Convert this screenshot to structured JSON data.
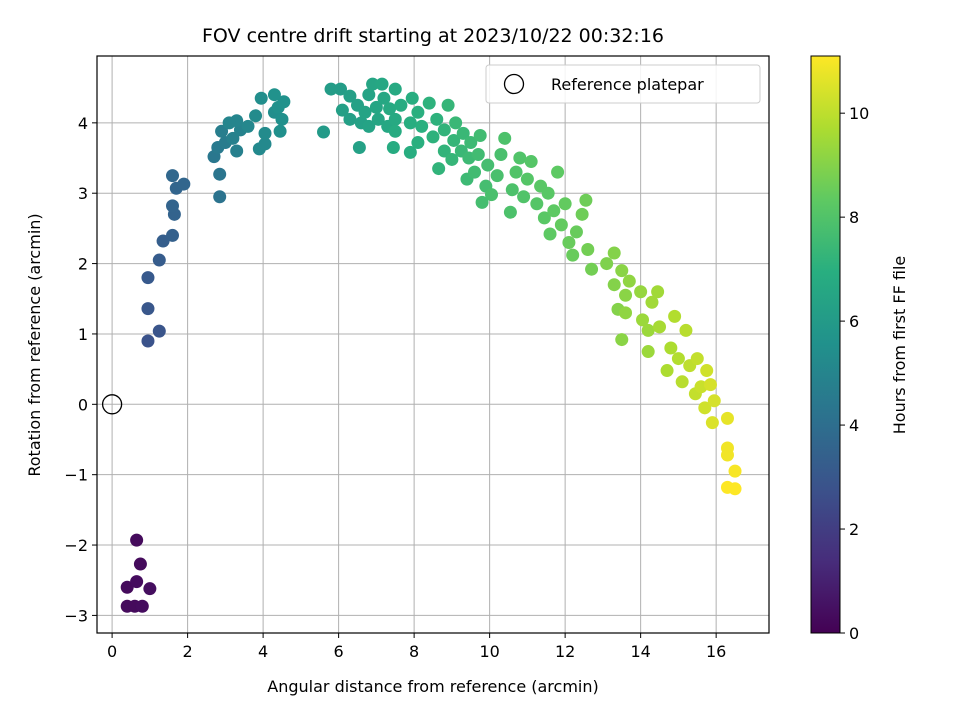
{
  "chart_data": {
    "type": "scatter",
    "title": "FOV centre drift starting at 2023/10/22 00:32:16",
    "xlabel": "Angular distance from reference (arcmin)",
    "ylabel": "Rotation from reference (arcmin)",
    "xlim": [
      -0.4,
      17.4
    ],
    "ylim": [
      -3.25,
      4.95
    ],
    "xticks": [
      0,
      2,
      4,
      6,
      8,
      10,
      12,
      14,
      16
    ],
    "yticks": [
      -3,
      -2,
      -1,
      0,
      1,
      2,
      3,
      4
    ],
    "grid": true,
    "legend": {
      "position": "top-right",
      "entries": [
        "Reference platepar"
      ]
    },
    "reference_point": {
      "label": "Reference platepar",
      "x": 0,
      "y": 0
    },
    "colorbar": {
      "label": "Hours from first FF file",
      "colormap": "viridis",
      "range": [
        0,
        11.1
      ],
      "ticks": [
        0,
        2,
        4,
        6,
        8,
        10
      ]
    },
    "points": [
      {
        "x": 0.65,
        "y": -1.93,
        "c": 0.3
      },
      {
        "x": 0.75,
        "y": -2.27,
        "c": 0.3
      },
      {
        "x": 0.4,
        "y": -2.6,
        "c": 0.3
      },
      {
        "x": 0.65,
        "y": -2.52,
        "c": 0.35
      },
      {
        "x": 1.0,
        "y": -2.62,
        "c": 0.4
      },
      {
        "x": 0.4,
        "y": -2.87,
        "c": 0.3
      },
      {
        "x": 0.6,
        "y": -2.87,
        "c": 0.3
      },
      {
        "x": 0.8,
        "y": -2.87,
        "c": 0.35
      },
      {
        "x": 0.95,
        "y": 0.9,
        "c": 2.8
      },
      {
        "x": 1.25,
        "y": 1.04,
        "c": 2.9
      },
      {
        "x": 0.95,
        "y": 1.36,
        "c": 3.0
      },
      {
        "x": 0.95,
        "y": 1.8,
        "c": 3.1
      },
      {
        "x": 1.25,
        "y": 2.05,
        "c": 3.2
      },
      {
        "x": 1.35,
        "y": 2.32,
        "c": 3.3
      },
      {
        "x": 1.6,
        "y": 2.4,
        "c": 3.4
      },
      {
        "x": 1.65,
        "y": 2.7,
        "c": 3.5
      },
      {
        "x": 1.6,
        "y": 2.82,
        "c": 3.55
      },
      {
        "x": 1.7,
        "y": 3.07,
        "c": 3.6
      },
      {
        "x": 1.9,
        "y": 3.13,
        "c": 3.65
      },
      {
        "x": 1.6,
        "y": 3.25,
        "c": 3.7
      },
      {
        "x": 2.85,
        "y": 2.95,
        "c": 4.2
      },
      {
        "x": 2.85,
        "y": 3.27,
        "c": 4.3
      },
      {
        "x": 2.7,
        "y": 3.52,
        "c": 4.4
      },
      {
        "x": 2.8,
        "y": 3.65,
        "c": 4.5
      },
      {
        "x": 3.0,
        "y": 3.72,
        "c": 4.6
      },
      {
        "x": 2.9,
        "y": 3.88,
        "c": 4.7
      },
      {
        "x": 3.3,
        "y": 3.6,
        "c": 4.8
      },
      {
        "x": 3.2,
        "y": 3.78,
        "c": 4.85
      },
      {
        "x": 3.4,
        "y": 3.9,
        "c": 4.9
      },
      {
        "x": 3.3,
        "y": 4.03,
        "c": 5.0
      },
      {
        "x": 3.1,
        "y": 4.0,
        "c": 5.0
      },
      {
        "x": 3.6,
        "y": 3.95,
        "c": 5.1
      },
      {
        "x": 3.9,
        "y": 3.63,
        "c": 5.2
      },
      {
        "x": 4.05,
        "y": 3.7,
        "c": 5.2
      },
      {
        "x": 4.05,
        "y": 3.85,
        "c": 5.3
      },
      {
        "x": 3.8,
        "y": 4.1,
        "c": 5.3
      },
      {
        "x": 3.95,
        "y": 4.35,
        "c": 5.4
      },
      {
        "x": 4.3,
        "y": 4.15,
        "c": 5.4
      },
      {
        "x": 4.45,
        "y": 3.88,
        "c": 5.5
      },
      {
        "x": 4.5,
        "y": 4.05,
        "c": 5.5
      },
      {
        "x": 4.4,
        "y": 4.22,
        "c": 5.55
      },
      {
        "x": 4.55,
        "y": 4.3,
        "c": 5.6
      },
      {
        "x": 4.3,
        "y": 4.4,
        "c": 5.6
      },
      {
        "x": 5.6,
        "y": 3.87,
        "c": 6.0
      },
      {
        "x": 5.8,
        "y": 4.48,
        "c": 6.1
      },
      {
        "x": 6.05,
        "y": 4.48,
        "c": 6.1
      },
      {
        "x": 6.1,
        "y": 4.18,
        "c": 6.2
      },
      {
        "x": 6.3,
        "y": 4.05,
        "c": 6.2
      },
      {
        "x": 6.3,
        "y": 4.38,
        "c": 6.2
      },
      {
        "x": 6.55,
        "y": 3.65,
        "c": 6.3
      },
      {
        "x": 6.6,
        "y": 4.0,
        "c": 6.3
      },
      {
        "x": 6.5,
        "y": 4.25,
        "c": 6.3
      },
      {
        "x": 6.7,
        "y": 4.15,
        "c": 6.4
      },
      {
        "x": 6.8,
        "y": 3.95,
        "c": 6.4
      },
      {
        "x": 6.8,
        "y": 4.4,
        "c": 6.4
      },
      {
        "x": 6.9,
        "y": 4.55,
        "c": 6.5
      },
      {
        "x": 7.0,
        "y": 4.22,
        "c": 6.5
      },
      {
        "x": 7.05,
        "y": 4.05,
        "c": 6.5
      },
      {
        "x": 7.2,
        "y": 4.35,
        "c": 6.6
      },
      {
        "x": 7.15,
        "y": 4.55,
        "c": 6.6
      },
      {
        "x": 7.3,
        "y": 3.95,
        "c": 6.6
      },
      {
        "x": 7.35,
        "y": 4.2,
        "c": 6.7
      },
      {
        "x": 7.5,
        "y": 4.05,
        "c": 6.7
      },
      {
        "x": 7.5,
        "y": 4.48,
        "c": 6.7
      },
      {
        "x": 7.45,
        "y": 3.65,
        "c": 6.8
      },
      {
        "x": 7.5,
        "y": 3.88,
        "c": 6.8
      },
      {
        "x": 7.65,
        "y": 4.25,
        "c": 6.8
      },
      {
        "x": 7.9,
        "y": 3.58,
        "c": 6.9
      },
      {
        "x": 7.9,
        "y": 4.0,
        "c": 6.9
      },
      {
        "x": 7.95,
        "y": 4.35,
        "c": 6.9
      },
      {
        "x": 8.1,
        "y": 3.72,
        "c": 7.0
      },
      {
        "x": 8.1,
        "y": 4.15,
        "c": 7.0
      },
      {
        "x": 8.2,
        "y": 3.95,
        "c": 7.0
      },
      {
        "x": 8.4,
        "y": 4.28,
        "c": 7.1
      },
      {
        "x": 8.5,
        "y": 3.8,
        "c": 7.1
      },
      {
        "x": 8.6,
        "y": 4.05,
        "c": 7.1
      },
      {
        "x": 8.65,
        "y": 3.35,
        "c": 7.2
      },
      {
        "x": 8.8,
        "y": 3.6,
        "c": 7.2
      },
      {
        "x": 8.8,
        "y": 3.9,
        "c": 7.2
      },
      {
        "x": 8.9,
        "y": 4.25,
        "c": 7.3
      },
      {
        "x": 9.0,
        "y": 3.48,
        "c": 7.3
      },
      {
        "x": 9.05,
        "y": 3.75,
        "c": 7.3
      },
      {
        "x": 9.1,
        "y": 4.0,
        "c": 7.4
      },
      {
        "x": 9.25,
        "y": 3.6,
        "c": 7.4
      },
      {
        "x": 9.3,
        "y": 3.85,
        "c": 7.4
      },
      {
        "x": 9.4,
        "y": 3.2,
        "c": 7.5
      },
      {
        "x": 9.45,
        "y": 3.5,
        "c": 7.5
      },
      {
        "x": 9.5,
        "y": 3.72,
        "c": 7.5
      },
      {
        "x": 9.6,
        "y": 3.3,
        "c": 7.6
      },
      {
        "x": 9.7,
        "y": 3.55,
        "c": 7.6
      },
      {
        "x": 9.75,
        "y": 3.82,
        "c": 7.6
      },
      {
        "x": 9.8,
        "y": 2.87,
        "c": 7.7
      },
      {
        "x": 9.9,
        "y": 3.1,
        "c": 7.7
      },
      {
        "x": 9.95,
        "y": 3.4,
        "c": 7.7
      },
      {
        "x": 10.05,
        "y": 2.98,
        "c": 7.8
      },
      {
        "x": 10.2,
        "y": 3.25,
        "c": 7.8
      },
      {
        "x": 10.3,
        "y": 3.55,
        "c": 7.8
      },
      {
        "x": 10.4,
        "y": 3.78,
        "c": 7.9
      },
      {
        "x": 10.55,
        "y": 2.73,
        "c": 7.9
      },
      {
        "x": 10.6,
        "y": 3.05,
        "c": 7.9
      },
      {
        "x": 10.7,
        "y": 3.3,
        "c": 8.0
      },
      {
        "x": 10.8,
        "y": 3.5,
        "c": 8.0
      },
      {
        "x": 10.9,
        "y": 2.95,
        "c": 8.0
      },
      {
        "x": 11.0,
        "y": 3.2,
        "c": 8.1
      },
      {
        "x": 11.1,
        "y": 3.45,
        "c": 8.1
      },
      {
        "x": 11.25,
        "y": 2.85,
        "c": 8.1
      },
      {
        "x": 11.35,
        "y": 3.1,
        "c": 8.2
      },
      {
        "x": 11.45,
        "y": 2.65,
        "c": 8.2
      },
      {
        "x": 11.55,
        "y": 3.0,
        "c": 8.2
      },
      {
        "x": 11.6,
        "y": 2.42,
        "c": 8.3
      },
      {
        "x": 11.7,
        "y": 2.75,
        "c": 8.3
      },
      {
        "x": 11.8,
        "y": 3.3,
        "c": 8.3
      },
      {
        "x": 11.9,
        "y": 2.55,
        "c": 8.4
      },
      {
        "x": 12.0,
        "y": 2.85,
        "c": 8.4
      },
      {
        "x": 12.1,
        "y": 2.3,
        "c": 8.5
      },
      {
        "x": 12.2,
        "y": 2.12,
        "c": 8.5
      },
      {
        "x": 12.3,
        "y": 2.45,
        "c": 8.5
      },
      {
        "x": 12.45,
        "y": 2.7,
        "c": 8.6
      },
      {
        "x": 12.55,
        "y": 2.9,
        "c": 8.6
      },
      {
        "x": 12.6,
        "y": 2.2,
        "c": 8.7
      },
      {
        "x": 12.7,
        "y": 1.92,
        "c": 8.7
      },
      {
        "x": 13.1,
        "y": 2.0,
        "c": 8.9
      },
      {
        "x": 13.3,
        "y": 1.7,
        "c": 9.0
      },
      {
        "x": 13.3,
        "y": 2.15,
        "c": 9.0
      },
      {
        "x": 13.4,
        "y": 1.35,
        "c": 9.0
      },
      {
        "x": 13.5,
        "y": 1.9,
        "c": 9.1
      },
      {
        "x": 13.6,
        "y": 1.55,
        "c": 9.1
      },
      {
        "x": 13.5,
        "y": 0.92,
        "c": 9.1
      },
      {
        "x": 13.6,
        "y": 1.3,
        "c": 9.2
      },
      {
        "x": 13.7,
        "y": 1.75,
        "c": 9.2
      },
      {
        "x": 14.0,
        "y": 1.6,
        "c": 9.3
      },
      {
        "x": 14.05,
        "y": 1.2,
        "c": 9.4
      },
      {
        "x": 14.2,
        "y": 1.05,
        "c": 9.4
      },
      {
        "x": 14.2,
        "y": 0.75,
        "c": 9.4
      },
      {
        "x": 14.3,
        "y": 1.45,
        "c": 9.5
      },
      {
        "x": 14.45,
        "y": 1.6,
        "c": 9.5
      },
      {
        "x": 14.5,
        "y": 1.1,
        "c": 9.6
      },
      {
        "x": 14.7,
        "y": 0.48,
        "c": 9.7
      },
      {
        "x": 14.8,
        "y": 0.8,
        "c": 9.7
      },
      {
        "x": 14.9,
        "y": 1.25,
        "c": 9.8
      },
      {
        "x": 15.0,
        "y": 0.65,
        "c": 9.8
      },
      {
        "x": 15.1,
        "y": 0.32,
        "c": 9.9
      },
      {
        "x": 15.2,
        "y": 1.05,
        "c": 9.9
      },
      {
        "x": 15.3,
        "y": 0.55,
        "c": 10.0
      },
      {
        "x": 15.45,
        "y": 0.15,
        "c": 10.1
      },
      {
        "x": 15.5,
        "y": 0.65,
        "c": 10.1
      },
      {
        "x": 15.6,
        "y": 0.25,
        "c": 10.2
      },
      {
        "x": 15.7,
        "y": -0.05,
        "c": 10.3
      },
      {
        "x": 15.75,
        "y": 0.48,
        "c": 10.3
      },
      {
        "x": 15.85,
        "y": 0.28,
        "c": 10.4
      },
      {
        "x": 15.95,
        "y": 0.05,
        "c": 10.4
      },
      {
        "x": 15.9,
        "y": -0.26,
        "c": 10.5
      },
      {
        "x": 16.3,
        "y": -0.2,
        "c": 10.7
      },
      {
        "x": 16.3,
        "y": -0.62,
        "c": 10.9
      },
      {
        "x": 16.3,
        "y": -0.72,
        "c": 10.9
      },
      {
        "x": 16.5,
        "y": -0.95,
        "c": 11.0
      },
      {
        "x": 16.3,
        "y": -1.18,
        "c": 11.1
      },
      {
        "x": 16.5,
        "y": -1.2,
        "c": 11.1
      }
    ]
  }
}
